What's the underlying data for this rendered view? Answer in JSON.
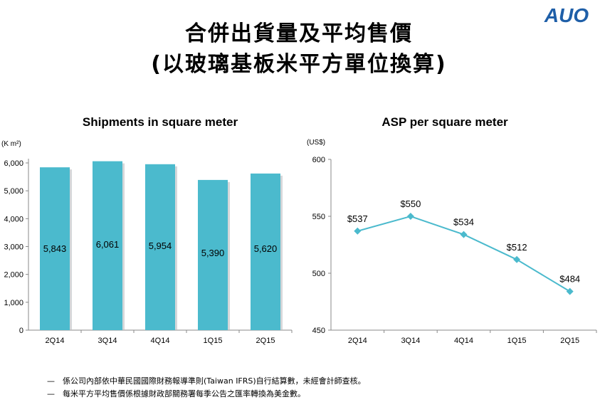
{
  "page": {
    "title_line1": "合併出貨量及平均售價",
    "title_line2": "(以玻璃基板米平方單位換算)",
    "logo_text": "AUO",
    "logo_color": "#1f5fa8",
    "notes": [
      "係公司內部依中華民國國際財務報導準則(Taiwan IFRS)自行結算數，未經會計師查核。",
      "每米平方平均售價係根據財政部關務署每季公告之匯率轉換為美金數。"
    ],
    "note_bullet": "—"
  },
  "chart_data": [
    {
      "type": "bar",
      "title": "Shipments in square meter",
      "ylabel": "(K m²)",
      "categories": [
        "2Q14",
        "3Q14",
        "4Q14",
        "1Q15",
        "2Q15"
      ],
      "values": [
        5843,
        6061,
        5954,
        5390,
        5620
      ],
      "value_labels": [
        "5,843",
        "6,061",
        "5,954",
        "5,390",
        "5,620"
      ],
      "ylim": [
        0,
        6000
      ],
      "yticks": [
        0,
        1000,
        2000,
        3000,
        4000,
        5000,
        6000
      ],
      "ytick_labels": [
        "0",
        "1,000",
        "2,000",
        "3,000",
        "4,000",
        "5,000",
        "6,000"
      ],
      "bar_color": "#4bbacd",
      "grid": false
    },
    {
      "type": "line",
      "title": "ASP per square meter",
      "ylabel": "(US$)",
      "categories": [
        "2Q14",
        "3Q14",
        "4Q14",
        "1Q15",
        "2Q15"
      ],
      "values": [
        537,
        550,
        534,
        512,
        484
      ],
      "value_labels": [
        "$537",
        "$550",
        "$534",
        "$512",
        "$484"
      ],
      "ylim": [
        450,
        600
      ],
      "yticks": [
        450,
        500,
        550,
        600
      ],
      "ytick_labels": [
        "450",
        "500",
        "550",
        "600"
      ],
      "line_color": "#4bbacd",
      "grid": false
    }
  ]
}
